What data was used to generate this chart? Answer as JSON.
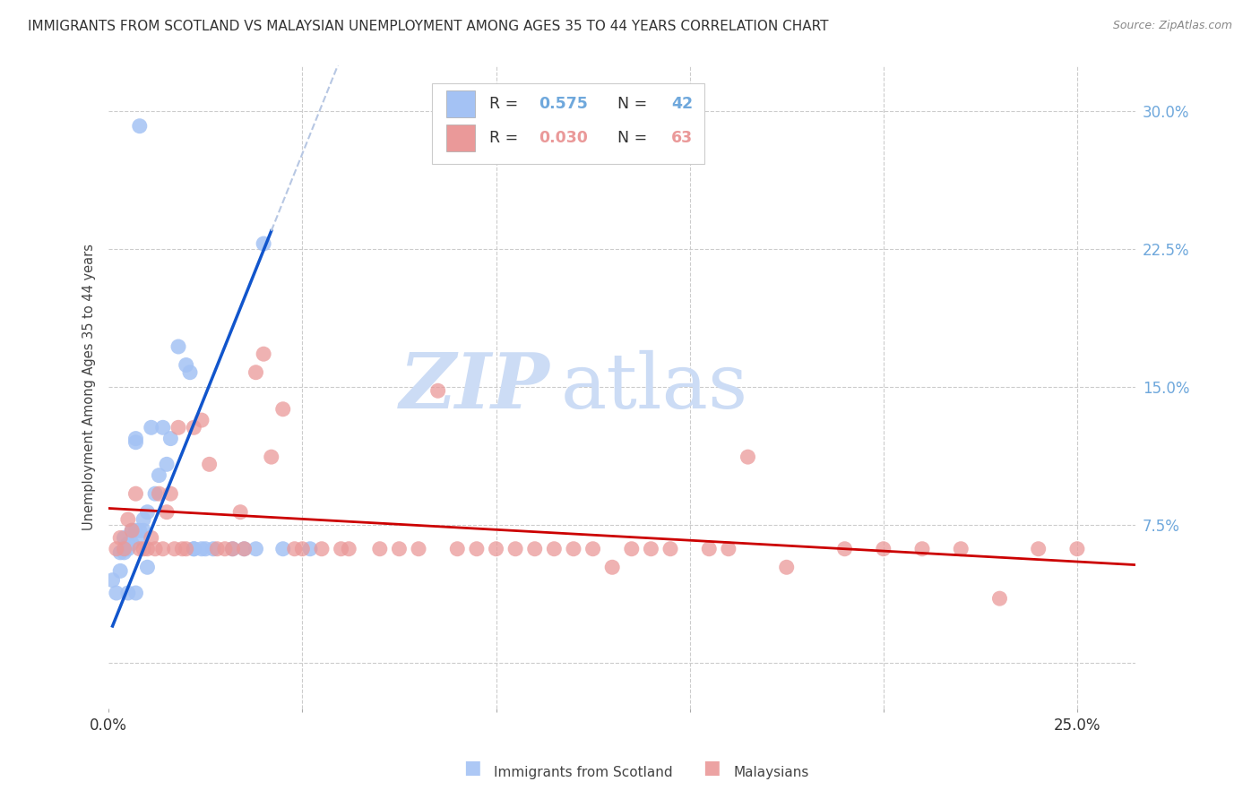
{
  "title": "IMMIGRANTS FROM SCOTLAND VS MALAYSIAN UNEMPLOYMENT AMONG AGES 35 TO 44 YEARS CORRELATION CHART",
  "source": "Source: ZipAtlas.com",
  "ylabel": "Unemployment Among Ages 35 to 44 years",
  "xlim": [
    0.0,
    0.265
  ],
  "ylim": [
    -0.025,
    0.325
  ],
  "ytick_vals": [
    0.0,
    0.075,
    0.15,
    0.225,
    0.3
  ],
  "ytick_labels": [
    "",
    "7.5%",
    "15.0%",
    "22.5%",
    "30.0%"
  ],
  "scotland_color": "#a4c2f4",
  "malaysia_color": "#ea9999",
  "trend_scotland_color": "#1155cc",
  "trend_malaysia_color": "#cc0000",
  "trend_extension_color": "#b7c7e3",
  "background_color": "#ffffff",
  "watermark_zip": "ZIP",
  "watermark_atlas": "atlas",
  "watermark_color_zip": "#c9daf8",
  "watermark_color_atlas": "#c9daf8",
  "r_scotland": "0.575",
  "n_scotland": "42",
  "r_malaysia": "0.030",
  "n_malaysia": "63",
  "legend_text_color": "#000000",
  "legend_value_color": "#1155cc",
  "scotland_x": [
    0.001,
    0.002,
    0.003,
    0.003,
    0.004,
    0.004,
    0.005,
    0.005,
    0.005,
    0.006,
    0.006,
    0.007,
    0.007,
    0.007,
    0.008,
    0.008,
    0.009,
    0.009,
    0.01,
    0.01,
    0.011,
    0.012,
    0.013,
    0.014,
    0.015,
    0.016,
    0.018,
    0.02,
    0.021,
    0.022,
    0.022,
    0.024,
    0.025,
    0.027,
    0.032,
    0.035,
    0.038,
    0.04,
    0.045,
    0.052,
    0.007,
    0.008
  ],
  "scotland_y": [
    0.045,
    0.038,
    0.06,
    0.05,
    0.068,
    0.06,
    0.062,
    0.038,
    0.065,
    0.065,
    0.072,
    0.072,
    0.038,
    0.12,
    0.072,
    0.068,
    0.072,
    0.078,
    0.082,
    0.052,
    0.128,
    0.092,
    0.102,
    0.128,
    0.108,
    0.122,
    0.172,
    0.162,
    0.158,
    0.062,
    0.062,
    0.062,
    0.062,
    0.062,
    0.062,
    0.062,
    0.062,
    0.228,
    0.062,
    0.062,
    0.122,
    0.292
  ],
  "malaysia_x": [
    0.002,
    0.003,
    0.004,
    0.005,
    0.006,
    0.007,
    0.008,
    0.009,
    0.01,
    0.011,
    0.012,
    0.013,
    0.014,
    0.015,
    0.016,
    0.017,
    0.018,
    0.019,
    0.02,
    0.022,
    0.024,
    0.026,
    0.028,
    0.03,
    0.032,
    0.034,
    0.038,
    0.042,
    0.048,
    0.055,
    0.062,
    0.07,
    0.08,
    0.09,
    0.1,
    0.11,
    0.12,
    0.13,
    0.14,
    0.155,
    0.165,
    0.175,
    0.19,
    0.2,
    0.21,
    0.22,
    0.23,
    0.24,
    0.25,
    0.035,
    0.04,
    0.045,
    0.05,
    0.06,
    0.075,
    0.085,
    0.095,
    0.105,
    0.115,
    0.125,
    0.135,
    0.145,
    0.16
  ],
  "malaysia_y": [
    0.062,
    0.068,
    0.062,
    0.078,
    0.072,
    0.092,
    0.062,
    0.062,
    0.062,
    0.068,
    0.062,
    0.092,
    0.062,
    0.082,
    0.092,
    0.062,
    0.128,
    0.062,
    0.062,
    0.128,
    0.132,
    0.108,
    0.062,
    0.062,
    0.062,
    0.082,
    0.158,
    0.112,
    0.062,
    0.062,
    0.062,
    0.062,
    0.062,
    0.062,
    0.062,
    0.062,
    0.062,
    0.052,
    0.062,
    0.062,
    0.112,
    0.052,
    0.062,
    0.062,
    0.062,
    0.062,
    0.035,
    0.062,
    0.062,
    0.062,
    0.168,
    0.138,
    0.062,
    0.062,
    0.062,
    0.148,
    0.062,
    0.062,
    0.062,
    0.062,
    0.062,
    0.062,
    0.062
  ]
}
